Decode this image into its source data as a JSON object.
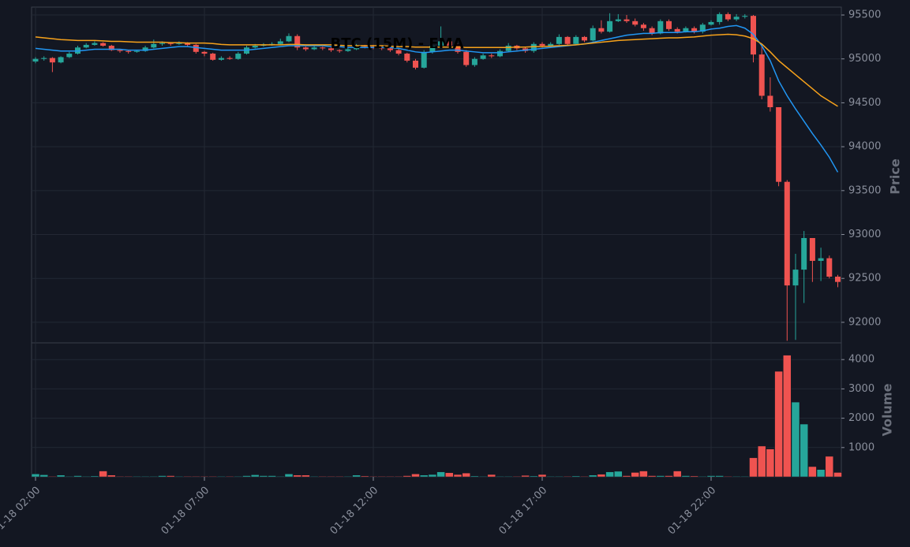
{
  "chart_data": [
    {
      "type": "candlestick",
      "title": "BTC (15M) - EMA",
      "ylabel": "Price",
      "categories": [
        "01-18 02:00",
        null,
        null,
        null,
        null,
        null,
        null,
        null,
        null,
        null,
        null,
        null,
        null,
        null,
        null,
        null,
        null,
        null,
        null,
        null,
        "01-18 07:00",
        null,
        null,
        null,
        null,
        null,
        null,
        null,
        null,
        null,
        null,
        null,
        null,
        null,
        null,
        null,
        null,
        null,
        null,
        null,
        "01-18 12:00",
        null,
        null,
        null,
        null,
        null,
        null,
        null,
        null,
        null,
        null,
        null,
        null,
        null,
        null,
        null,
        null,
        null,
        null,
        null,
        "01-18 17:00",
        null,
        null,
        null,
        null,
        null,
        null,
        null,
        null,
        null,
        null,
        null,
        null,
        null,
        null,
        null,
        null,
        null,
        null,
        null,
        "01-18 22:00",
        null,
        null,
        null,
        null,
        null,
        null,
        null,
        null,
        null,
        null,
        null,
        null,
        null,
        null,
        null
      ],
      "open": [
        94970,
        95000,
        95010,
        94960,
        95020,
        95060,
        95130,
        95160,
        95180,
        95150,
        95100,
        95090,
        95080,
        95090,
        95130,
        95170,
        95180,
        95170,
        95180,
        95160,
        95080,
        95060,
        94990,
        95010,
        95000,
        95060,
        95130,
        95150,
        95160,
        95170,
        95200,
        95260,
        95130,
        95110,
        95130,
        95120,
        95100,
        95090,
        95110,
        95150,
        95140,
        95130,
        95120,
        95100,
        95060,
        94980,
        94900,
        95080,
        95150,
        95200,
        95150,
        95080,
        94930,
        95000,
        95040,
        95030,
        95090,
        95150,
        95120,
        95090,
        95170,
        95150,
        95170,
        95250,
        95170,
        95250,
        95210,
        95350,
        95310,
        95430,
        95450,
        95430,
        95390,
        95350,
        95290,
        95430,
        95340,
        95310,
        95350,
        95310,
        95390,
        95420,
        95510,
        95450,
        95480,
        95490,
        95050,
        94580,
        94450,
        93600,
        92420,
        92600,
        92960,
        92700,
        92730,
        92520
      ],
      "high": [
        95020,
        95030,
        95020,
        95030,
        95080,
        95150,
        95180,
        95200,
        95190,
        95160,
        95110,
        95100,
        95100,
        95150,
        95220,
        95200,
        95190,
        95200,
        95190,
        95170,
        95090,
        95070,
        95030,
        95030,
        95080,
        95150,
        95170,
        95180,
        95190,
        95230,
        95290,
        95280,
        95140,
        95150,
        95140,
        95130,
        95110,
        95130,
        95170,
        95160,
        95160,
        95150,
        95140,
        95120,
        95070,
        95000,
        95100,
        95170,
        95370,
        95220,
        95170,
        95100,
        95020,
        95060,
        95060,
        95110,
        95180,
        95160,
        95130,
        95190,
        95190,
        95190,
        95280,
        95260,
        95270,
        95260,
        95380,
        95440,
        95520,
        95510,
        95500,
        95460,
        95410,
        95370,
        95450,
        95450,
        95360,
        95370,
        95370,
        95410,
        95440,
        95530,
        95530,
        95510,
        95510,
        95500,
        95170,
        94790,
        94450,
        93620,
        92780,
        93040,
        92960,
        92850,
        92760,
        92540
      ],
      "low": [
        94950,
        94980,
        94850,
        94950,
        95010,
        95050,
        95120,
        95150,
        95140,
        95090,
        95070,
        95060,
        95070,
        95080,
        95120,
        95150,
        95150,
        95160,
        95140,
        95060,
        95030,
        94980,
        94980,
        94990,
        94990,
        95050,
        95120,
        95140,
        95150,
        95160,
        95190,
        95100,
        95090,
        95100,
        95100,
        95080,
        95070,
        95080,
        95100,
        95120,
        95110,
        95100,
        95080,
        95040,
        94960,
        94880,
        94890,
        95060,
        95130,
        95130,
        95060,
        94910,
        94910,
        94990,
        95010,
        95020,
        95080,
        95100,
        95070,
        95070,
        95130,
        95140,
        95160,
        95150,
        95160,
        95190,
        95200,
        95290,
        95300,
        95420,
        95410,
        95370,
        95320,
        95270,
        95280,
        95320,
        95290,
        95300,
        95290,
        95290,
        95380,
        95390,
        95430,
        95430,
        95460,
        94960,
        94540,
        94400,
        93550,
        91790,
        91800,
        92220,
        92460,
        92470,
        92500,
        92400
      ],
      "close": [
        95000,
        95010,
        94960,
        95020,
        95060,
        95130,
        95160,
        95180,
        95150,
        95100,
        95090,
        95080,
        95090,
        95130,
        95170,
        95180,
        95170,
        95180,
        95160,
        95080,
        95060,
        94990,
        95010,
        95000,
        95060,
        95130,
        95150,
        95160,
        95170,
        95200,
        95260,
        95130,
        95110,
        95130,
        95120,
        95100,
        95090,
        95110,
        95150,
        95140,
        95130,
        95120,
        95100,
        95060,
        94980,
        94900,
        95080,
        95150,
        95200,
        95150,
        95080,
        94930,
        95000,
        95040,
        95030,
        95090,
        95150,
        95120,
        95090,
        95170,
        95150,
        95170,
        95250,
        95170,
        95250,
        95210,
        95350,
        95310,
        95430,
        95450,
        95430,
        95390,
        95350,
        95290,
        95430,
        95340,
        95310,
        95350,
        95310,
        95390,
        95420,
        95510,
        95450,
        95480,
        95490,
        95050,
        94580,
        94450,
        93600,
        92420,
        92600,
        92960,
        92700,
        92730,
        92520,
        92460
      ],
      "up_color": "#26a69a",
      "down_color": "#ef5350",
      "lines": [
        {
          "color": "#2196f3",
          "values": [
            95120,
            95110,
            95100,
            95090,
            95090,
            95090,
            95100,
            95110,
            95110,
            95110,
            95110,
            95100,
            95100,
            95100,
            95110,
            95120,
            95130,
            95140,
            95140,
            95130,
            95120,
            95110,
            95100,
            95100,
            95100,
            95100,
            95110,
            95120,
            95130,
            95140,
            95150,
            95150,
            95150,
            95150,
            95150,
            95140,
            95140,
            95130,
            95130,
            95130,
            95130,
            95130,
            95130,
            95120,
            95100,
            95080,
            95070,
            95080,
            95090,
            95100,
            95100,
            95090,
            95080,
            95070,
            95070,
            95070,
            95080,
            95090,
            95100,
            95110,
            95120,
            95130,
            95140,
            95150,
            95160,
            95170,
            95190,
            95210,
            95230,
            95250,
            95270,
            95280,
            95290,
            95290,
            95300,
            95300,
            95300,
            95310,
            95310,
            95320,
            95340,
            95350,
            95370,
            95380,
            95350,
            95280,
            95150,
            94980,
            94750,
            94580,
            94430,
            94290,
            94150,
            94020,
            93880,
            93710
          ]
        },
        {
          "color": "#f7a21b",
          "values": [
            95250,
            95240,
            95230,
            95220,
            95215,
            95210,
            95210,
            95210,
            95205,
            95200,
            95200,
            95195,
            95190,
            95190,
            95190,
            95190,
            95185,
            95185,
            95180,
            95180,
            95180,
            95175,
            95165,
            95160,
            95160,
            95160,
            95160,
            95160,
            95160,
            95160,
            95165,
            95165,
            95160,
            95160,
            95160,
            95160,
            95155,
            95150,
            95150,
            95150,
            95150,
            95150,
            95145,
            95140,
            95140,
            95135,
            95135,
            95135,
            95135,
            95135,
            95135,
            95130,
            95130,
            95130,
            95130,
            95130,
            95130,
            95135,
            95135,
            95140,
            95140,
            95145,
            95150,
            95155,
            95160,
            95170,
            95180,
            95190,
            95200,
            95210,
            95215,
            95220,
            95225,
            95230,
            95235,
            95240,
            95240,
            95245,
            95250,
            95260,
            95270,
            95275,
            95280,
            95275,
            95260,
            95230,
            95170,
            95080,
            94980,
            94900,
            94820,
            94740,
            94660,
            94580,
            94520,
            94460
          ]
        }
      ],
      "ylim": [
        91766,
        95590
      ],
      "yticks": [
        92000,
        92500,
        93000,
        93500,
        94000,
        94500,
        95000,
        95500
      ],
      "grid": true
    },
    {
      "type": "bar",
      "ylabel": "Volume",
      "values": [
        100,
        70,
        20,
        60,
        20,
        40,
        20,
        30,
        200,
        60,
        20,
        20,
        20,
        20,
        20,
        40,
        40,
        20,
        20,
        20,
        20,
        20,
        20,
        20,
        20,
        40,
        70,
        40,
        40,
        20,
        100,
        60,
        60,
        20,
        20,
        20,
        20,
        20,
        60,
        30,
        20,
        20,
        20,
        20,
        40,
        100,
        60,
        80,
        170,
        140,
        80,
        130,
        30,
        20,
        80,
        20,
        20,
        20,
        50,
        30,
        80,
        20,
        20,
        20,
        30,
        20,
        60,
        90,
        170,
        190,
        40,
        150,
        200,
        40,
        40,
        40,
        200,
        40,
        30,
        20,
        40,
        40,
        20,
        20,
        20,
        650,
        1050,
        950,
        3600,
        4150,
        2550,
        1800,
        350,
        250,
        700,
        150
      ],
      "ylim": [
        0,
        4570
      ],
      "yticks": [
        1000,
        2000,
        3000,
        4000
      ],
      "grid": true
    }
  ]
}
